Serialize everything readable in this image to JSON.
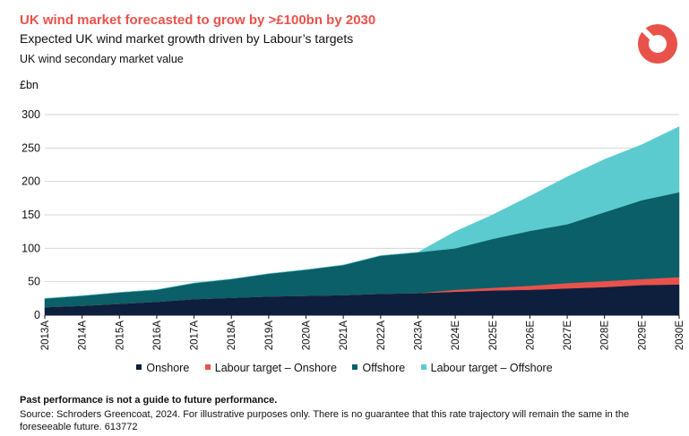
{
  "header": {
    "title": "UK wind market forecasted to grow by >£100bn by 2030",
    "subtitle": "Expected UK wind market growth driven by Labour’s targets",
    "series_label": "UK wind secondary market value"
  },
  "footer": {
    "disclaimer": "Past performance is not a guide to future performance.",
    "source": "Source: Schroders Greencoat, 2024. For illustrative purposes only. There is no guarantee that this rate trajectory will remain the same in the foreseeable future. 613772"
  },
  "colors": {
    "onshore": "#0d1f3c",
    "labour_onshore": "#e8524a",
    "offshore": "#0b5f68",
    "labour_offshore": "#5ccbcf",
    "grid": "#d4d4d4",
    "logo": "#e8524a"
  },
  "chart_data": {
    "type": "area",
    "stacked": true,
    "title": "UK wind market forecasted to grow by >£100bn by 2030",
    "ylabel": "£bn",
    "xlabel": "",
    "ylim": [
      0,
      300
    ],
    "yticks": [
      0,
      50,
      100,
      150,
      200,
      250,
      300
    ],
    "grid": true,
    "legend_position": "bottom",
    "categories": [
      "2013A",
      "2014A",
      "2015A",
      "2016A",
      "2017A",
      "2018A",
      "2019A",
      "2020A",
      "2021A",
      "2022A",
      "2023A",
      "2024E",
      "2025E",
      "2026E",
      "2027E",
      "2028E",
      "2029E",
      "2030E"
    ],
    "series": [
      {
        "name": "Onshore",
        "key": "onshore",
        "values": [
          12,
          14,
          17,
          20,
          24,
          26,
          28,
          29,
          30,
          32,
          33,
          35,
          37,
          38,
          40,
          42,
          45,
          46
        ]
      },
      {
        "name": "Labour target – Onshore",
        "key": "labour_onshore",
        "values": [
          0,
          0,
          0,
          0,
          0,
          0,
          0,
          0,
          0,
          0,
          0,
          3,
          4,
          6,
          8,
          9,
          9,
          11
        ]
      },
      {
        "name": "Offshore",
        "key": "offshore",
        "values": [
          13,
          15,
          17,
          18,
          24,
          28,
          34,
          39,
          45,
          57,
          61,
          62,
          73,
          82,
          88,
          103,
          118,
          127
        ]
      },
      {
        "name": "Labour target – Offshore",
        "key": "labour_offshore",
        "values": [
          0,
          0,
          0,
          0,
          0,
          0,
          0,
          0,
          0,
          0,
          0,
          25,
          36,
          52,
          71,
          79,
          83,
          98
        ]
      }
    ]
  }
}
